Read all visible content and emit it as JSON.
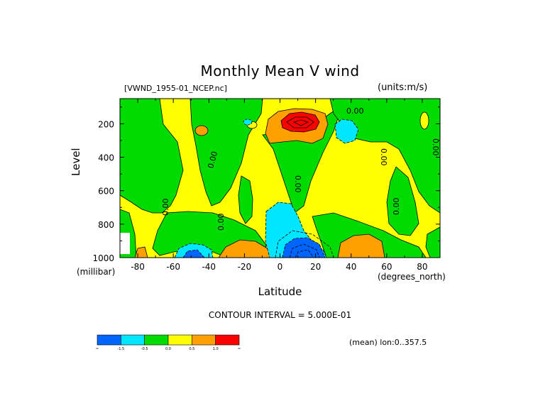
{
  "chart_data": {
    "type": "heatmap",
    "title": "Monthly Mean V wind",
    "dataset_label": "[VWND_1955-01_NCEP.nc]",
    "units_label": "(units:m/s)",
    "xlabel": "Latitude",
    "x_units": "(degrees_north)",
    "ylabel": "Level",
    "y_units": "(millibar)",
    "xlim": [
      -90,
      90
    ],
    "ylim": [
      1000,
      50
    ],
    "y_inverted": true,
    "x_ticks": [
      -80,
      -60,
      -40,
      -20,
      0,
      20,
      40,
      60,
      80
    ],
    "y_ticks": [
      200,
      400,
      600,
      800,
      1000
    ],
    "contour_interval_text": "CONTOUR INTERVAL = 5.000E-01",
    "contour_line_label": "0.00",
    "mean_label": "(mean) lon:0..357.5",
    "colorbar": {
      "boundaries": [
        "-1.5",
        "-0.5",
        "0.0",
        "0.5",
        "1.0"
      ],
      "colors": [
        "#0064ff",
        "#00e6ff",
        "#00dc00",
        "#ffff00",
        "#ffa000",
        "#ff0000"
      ]
    },
    "color_bins_ms": [
      "< -1.5",
      "-1.5 to -0.5",
      "-0.5 to 0.0",
      "0.0 to 0.5",
      "0.5 to 1.0",
      "> 1.0"
    ]
  }
}
